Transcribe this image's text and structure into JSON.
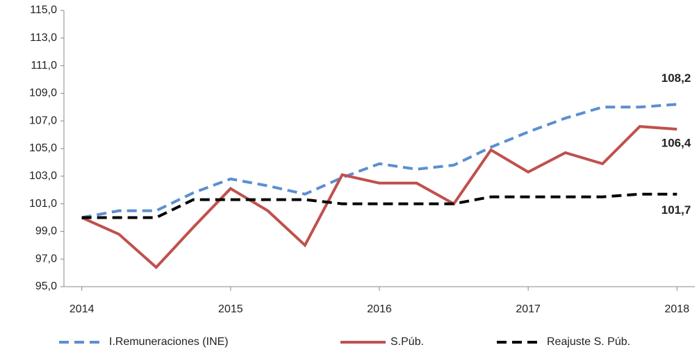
{
  "chart_data": {
    "type": "line",
    "x": [
      2014,
      2014.25,
      2014.5,
      2014.75,
      2015,
      2015.25,
      2015.5,
      2015.75,
      2016,
      2016.25,
      2016.5,
      2016.75,
      2017,
      2017.25,
      2017.5,
      2017.75,
      2018
    ],
    "xlim": [
      2013.88,
      2018.12
    ],
    "xticks": [
      2014,
      2015,
      2016,
      2017,
      2018
    ],
    "ylim": [
      95,
      115
    ],
    "yticks": [
      {
        "value": 95,
        "label": "95,0"
      },
      {
        "value": 97,
        "label": "97,0"
      },
      {
        "value": 99,
        "label": "99,0"
      },
      {
        "value": 101,
        "label": "101,0"
      },
      {
        "value": 103,
        "label": "103,0"
      },
      {
        "value": 105,
        "label": "105,0"
      },
      {
        "value": 107,
        "label": "107,0"
      },
      {
        "value": 109,
        "label": "109,0"
      },
      {
        "value": 111,
        "label": "111,0"
      },
      {
        "value": 113,
        "label": "113,0"
      },
      {
        "value": 115,
        "label": "115,0"
      }
    ],
    "grid": false,
    "legend": "bottom",
    "series": [
      {
        "name": "I.Remuneraciones (INE)",
        "color": "#5b8fd0",
        "dash": "dashed",
        "values": [
          100.0,
          100.5,
          100.5,
          101.8,
          102.8,
          102.3,
          101.7,
          102.9,
          103.9,
          103.5,
          103.8,
          105.1,
          106.2,
          107.2,
          108.0,
          108.0,
          108.2
        ],
        "value_labels": [
          null,
          null,
          null,
          null,
          null,
          null,
          null,
          null,
          null,
          null,
          null,
          null,
          null,
          null,
          null,
          null,
          "108,2"
        ]
      },
      {
        "name": "S.Púb.",
        "color": "#c0504d",
        "dash": "solid",
        "values": [
          100.0,
          98.8,
          96.4,
          99.3,
          102.1,
          100.5,
          98.0,
          103.1,
          102.5,
          102.5,
          101.0,
          104.9,
          103.3,
          104.7,
          103.9,
          106.6,
          106.4
        ],
        "value_labels": [
          null,
          null,
          null,
          null,
          null,
          null,
          null,
          null,
          null,
          null,
          null,
          null,
          null,
          null,
          null,
          null,
          "106,4"
        ]
      },
      {
        "name": "Reajuste S. Púb.",
        "color": "#000000",
        "dash": "dashed",
        "values": [
          100.0,
          100.0,
          100.0,
          101.3,
          101.3,
          101.3,
          101.3,
          101.0,
          101.0,
          101.0,
          101.0,
          101.5,
          101.5,
          101.5,
          101.5,
          101.7,
          101.7
        ],
        "value_labels": [
          null,
          null,
          null,
          null,
          null,
          null,
          null,
          null,
          null,
          null,
          null,
          null,
          null,
          null,
          null,
          null,
          "101,7"
        ]
      }
    ]
  }
}
